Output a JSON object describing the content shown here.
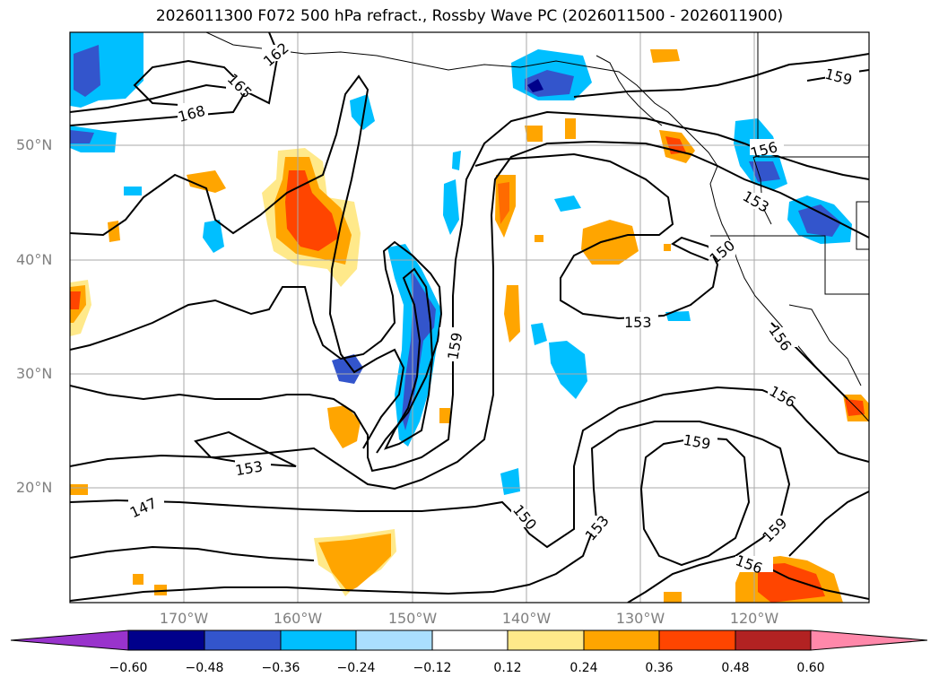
{
  "title": "2026011300 F072 500 hPa refract., Rossby Wave PC (2026011500 - 2026011900)",
  "lat_labels": [
    "50°N",
    "40°N",
    "30°N",
    "20°N"
  ],
  "lon_labels": [
    "170°W",
    "160°W",
    "150°W",
    "140°W",
    "130°W",
    "120°W"
  ],
  "contour_labels": [
    "162",
    "165",
    "168",
    "159",
    "156",
    "153",
    "150",
    "153",
    "156",
    "159",
    "153",
    "147",
    "150",
    "153",
    "159",
    "156",
    "159",
    "156"
  ],
  "colorbar": {
    "ticks": [
      "−0.60",
      "−0.48",
      "−0.36",
      "−0.24",
      "−0.12",
      "0.12",
      "0.24",
      "0.36",
      "0.48",
      "0.60"
    ],
    "colors": [
      "#9933cc",
      "#00008b",
      "#3355cc",
      "#00bfff",
      "#aadfff",
      "#ffffff",
      "#ffe98a",
      "#ffa500",
      "#ff4500",
      "#b22222",
      "#ff88aa"
    ]
  }
}
